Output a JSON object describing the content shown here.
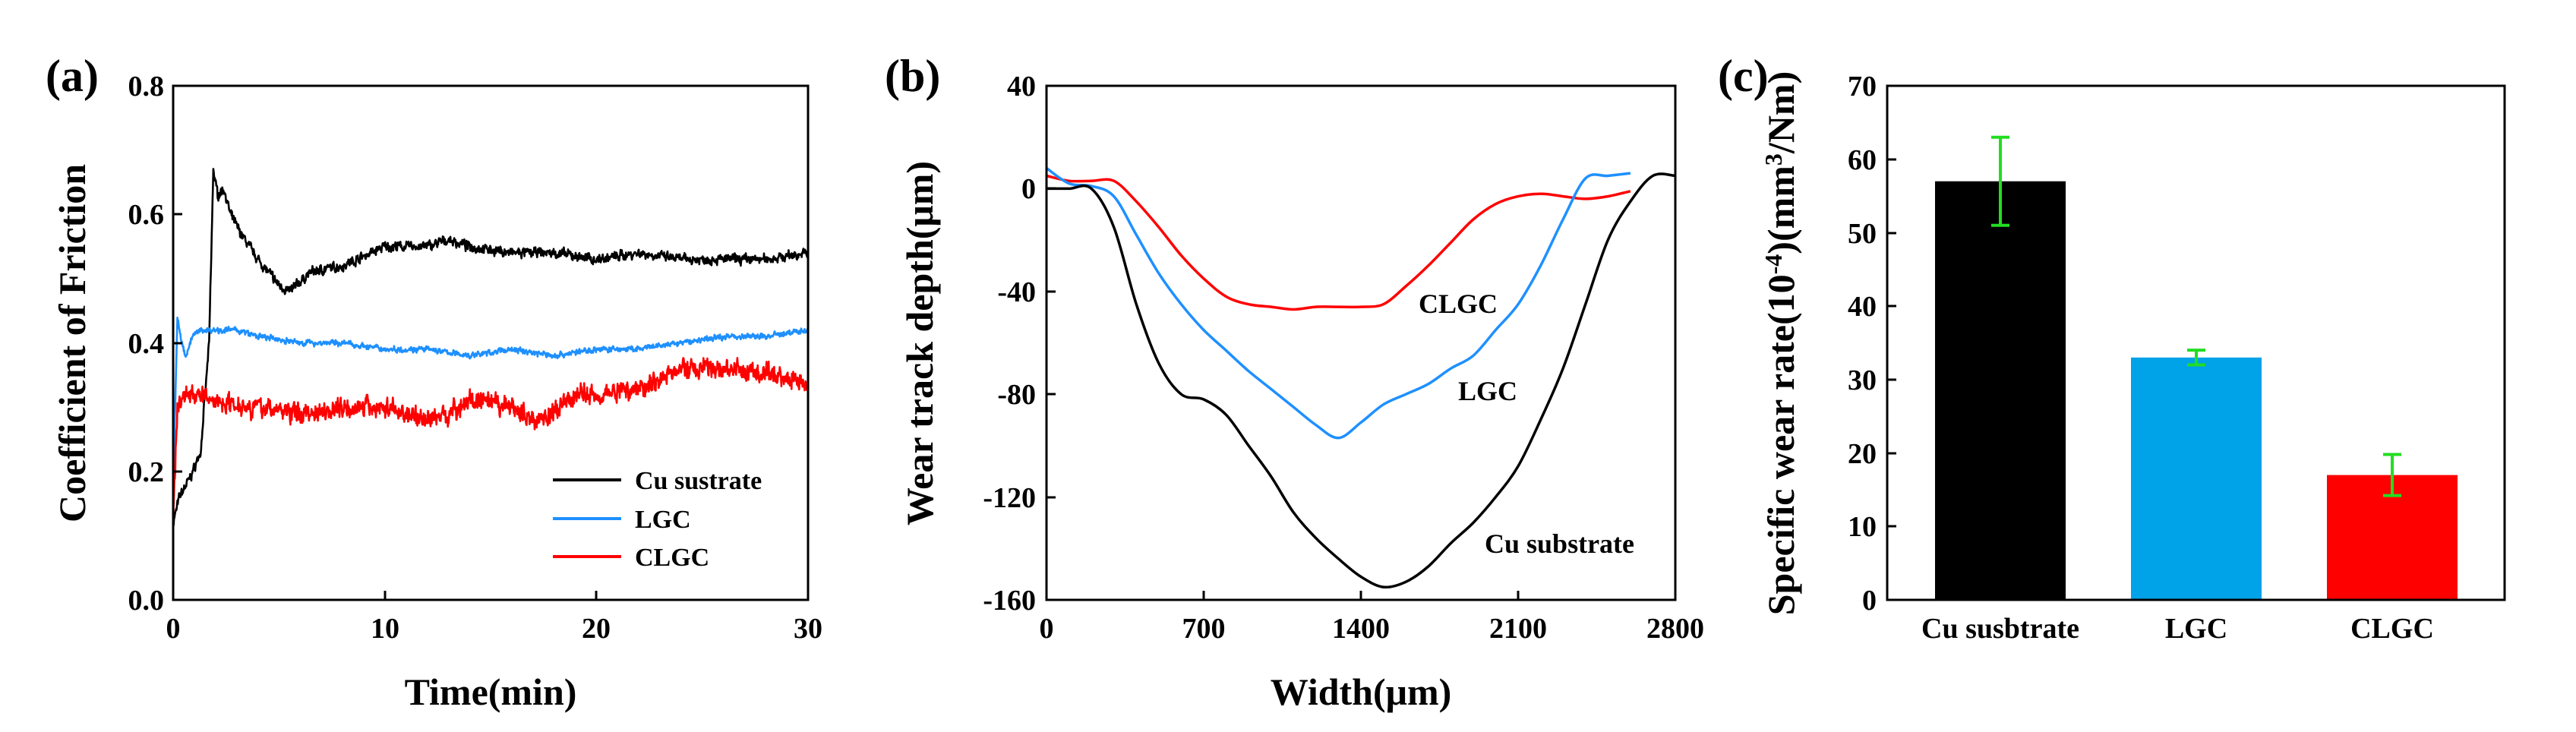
{
  "colors": {
    "black": "#000000",
    "blue": "#1e90ff",
    "red": "#ff0000",
    "bar_blue": "#00a2e8",
    "error_green": "#22dd22"
  },
  "chart_data": [
    {
      "panel": "(a)",
      "type": "line",
      "xlabel": "Time(min)",
      "ylabel": "Coefficient of Friction",
      "xlim": [
        0,
        30
      ],
      "ylim": [
        0.0,
        0.8
      ],
      "xticks": [
        "0",
        "10",
        "20",
        "30"
      ],
      "yticks": [
        "0.0",
        "0.2",
        "0.4",
        "0.6",
        "0.8"
      ],
      "legend": {
        "position": "bottom-right",
        "entries": [
          "Cu sustrate",
          "LGC",
          "CLGC"
        ]
      },
      "series": [
        {
          "name": "Cu sustrate",
          "color": "#000000",
          "noise": 0.01,
          "x": [
            0,
            0.3,
            0.8,
            1.3,
            1.7,
            1.9,
            2.1,
            2.4,
            2.7,
            3.2,
            4.0,
            5.0,
            5.5,
            6.5,
            8,
            10,
            12,
            13,
            14,
            16,
            18,
            20,
            22,
            24,
            26,
            28,
            30
          ],
          "y": [
            0.12,
            0.16,
            0.19,
            0.23,
            0.4,
            0.67,
            0.63,
            0.64,
            0.6,
            0.57,
            0.53,
            0.49,
            0.48,
            0.51,
            0.52,
            0.55,
            0.55,
            0.56,
            0.55,
            0.54,
            0.54,
            0.53,
            0.54,
            0.53,
            0.53,
            0.53,
            0.54
          ]
        },
        {
          "name": "LGC",
          "color": "#1e90ff",
          "noise": 0.006,
          "x": [
            0,
            0.2,
            0.4,
            0.6,
            0.9,
            1.3,
            2,
            3,
            4,
            6,
            8,
            10,
            12,
            14,
            16,
            18,
            20,
            22,
            24,
            26,
            28,
            30
          ],
          "y": [
            0.17,
            0.44,
            0.4,
            0.38,
            0.41,
            0.42,
            0.42,
            0.42,
            0.41,
            0.4,
            0.4,
            0.39,
            0.39,
            0.38,
            0.39,
            0.38,
            0.39,
            0.39,
            0.4,
            0.41,
            0.41,
            0.42
          ]
        },
        {
          "name": "CLGC",
          "color": "#ff0000",
          "noise": 0.02,
          "x": [
            0,
            0.2,
            0.5,
            1,
            2,
            4,
            6,
            8,
            10,
            11,
            12,
            13,
            14,
            16,
            17,
            18,
            19,
            20,
            22,
            24,
            26,
            28,
            30
          ],
          "y": [
            0.12,
            0.3,
            0.32,
            0.32,
            0.31,
            0.3,
            0.29,
            0.3,
            0.3,
            0.29,
            0.28,
            0.29,
            0.31,
            0.3,
            0.28,
            0.29,
            0.32,
            0.32,
            0.33,
            0.36,
            0.36,
            0.35,
            0.34
          ]
        }
      ]
    },
    {
      "panel": "(b)",
      "type": "line",
      "xlabel": "Width(μm)",
      "ylabel": "Wear track depth(μm)",
      "xlim": [
        0,
        2800
      ],
      "ylim": [
        -160,
        40
      ],
      "xticks": [
        "0",
        "700",
        "1400",
        "2100",
        "2800"
      ],
      "yticks": [
        "-160",
        "-120",
        "-80",
        "-40",
        "0",
        "40"
      ],
      "annotations": [
        "CLGC",
        "LGC",
        "Cu substrate"
      ],
      "series": [
        {
          "name": "CLGC",
          "color": "#ff0000",
          "x": [
            0,
            100,
            200,
            300,
            400,
            500,
            600,
            700,
            800,
            900,
            1000,
            1100,
            1200,
            1300,
            1400,
            1500,
            1600,
            1700,
            1800,
            1900,
            2000,
            2100,
            2200,
            2300,
            2400,
            2500,
            2600
          ],
          "y": [
            5,
            3,
            3,
            3,
            -5,
            -15,
            -26,
            -35,
            -42,
            -45,
            -46,
            -47,
            -46,
            -46,
            -46,
            -45,
            -38,
            -30,
            -21,
            -12,
            -6,
            -3,
            -2,
            -3,
            -4,
            -3,
            -1
          ]
        },
        {
          "name": "LGC",
          "color": "#1e90ff",
          "x": [
            0,
            100,
            200,
            300,
            400,
            500,
            600,
            700,
            800,
            900,
            1000,
            1100,
            1200,
            1300,
            1400,
            1500,
            1600,
            1700,
            1800,
            1900,
            2000,
            2100,
            2200,
            2300,
            2400,
            2500,
            2600
          ],
          "y": [
            8,
            2,
            1,
            -3,
            -18,
            -33,
            -45,
            -55,
            -63,
            -71,
            -78,
            -85,
            -92,
            -97,
            -91,
            -84,
            -80,
            -76,
            -70,
            -65,
            -55,
            -45,
            -30,
            -12,
            4,
            5,
            6
          ]
        },
        {
          "name": "Cu substrate",
          "color": "#000000",
          "x": [
            0,
            100,
            200,
            300,
            400,
            500,
            600,
            700,
            800,
            900,
            1000,
            1100,
            1200,
            1300,
            1400,
            1500,
            1600,
            1700,
            1800,
            1900,
            2000,
            2100,
            2200,
            2300,
            2400,
            2500,
            2600,
            2700,
            2800
          ],
          "y": [
            0,
            0,
            0,
            -15,
            -45,
            -68,
            -80,
            -82,
            -88,
            -100,
            -112,
            -126,
            -136,
            -144,
            -151,
            -155,
            -153,
            -147,
            -138,
            -130,
            -120,
            -108,
            -90,
            -70,
            -45,
            -20,
            -5,
            5,
            5
          ]
        }
      ]
    },
    {
      "panel": "(c)",
      "type": "bar",
      "ylabel_base": "Specific wear rate(10",
      "ylabel_exp": "-4",
      "ylabel_mid": ")(mm",
      "ylabel_exp2": "3",
      "ylabel_tail": "/Nm)",
      "ylim": [
        0,
        70
      ],
      "yticks": [
        "0",
        "10",
        "20",
        "30",
        "40",
        "50",
        "60",
        "70"
      ],
      "categories": [
        "Cu susbtrate",
        "LGC",
        "CLGC"
      ],
      "values": [
        57,
        33,
        17
      ],
      "errors": [
        6,
        1,
        2.8
      ],
      "bar_colors": [
        "#000000",
        "#00a2e8",
        "#ff0000"
      ],
      "error_color": "#22dd22"
    }
  ]
}
